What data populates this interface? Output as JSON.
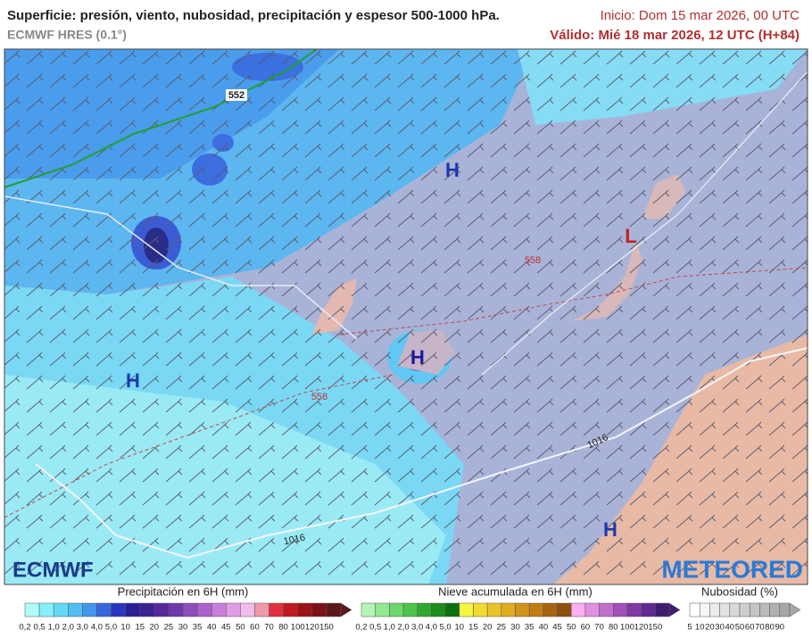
{
  "header": {
    "title": "Superficie: presión, viento, nubosidad, precipitación y espesor 500-1000 hPa.",
    "model": "ECMWF HRES (0.1°)",
    "init": "Inicio: Dom 15 mar 2026, 00 UTC",
    "valid": "Válido: Mié 18 mar 2026, 12 UTC (H+84)"
  },
  "map": {
    "pressure_centers": [
      "H",
      "H",
      "H",
      "H",
      "L"
    ],
    "thickness_labels": [
      "552",
      "558",
      "558"
    ],
    "isobar_labels": [
      "1016",
      "1016"
    ]
  },
  "logos": {
    "left": "ECMWF",
    "right": "METEORED"
  },
  "legends": [
    {
      "title": "Precipitación en 6H (mm)",
      "labels": [
        "0,2",
        "0,5",
        "1,0",
        "2,0",
        "3,0",
        "4,0",
        "5,0",
        "10",
        "15",
        "20",
        "25",
        "30",
        "35",
        "40",
        "45",
        "50",
        "60",
        "70",
        "80",
        "100",
        "120",
        "150"
      ],
      "colors": [
        "#aefcfc",
        "#86f0f8",
        "#62daf6",
        "#52bdf2",
        "#4296ea",
        "#3468dc",
        "#2a36c2",
        "#2a1e94",
        "#3a2290",
        "#55289c",
        "#7038ac",
        "#8e4cbc",
        "#ac62cc",
        "#c87ed8",
        "#e09ce4",
        "#f2bcec",
        "#ee9aa8",
        "#e03040",
        "#c01820",
        "#9c1018",
        "#7c1218",
        "#5c1818"
      ]
    },
    {
      "title": "Nieve acumulada en 6H (mm)",
      "labels": [
        "0,2",
        "0,5",
        "1,0",
        "2,0",
        "3,0",
        "4,0",
        "5,0",
        "10",
        "15",
        "20",
        "25",
        "30",
        "35",
        "40",
        "45",
        "50",
        "60",
        "70",
        "80",
        "100",
        "120",
        "150"
      ],
      "colors": [
        "#b4f4b4",
        "#90e890",
        "#6cd86c",
        "#4cc44c",
        "#30a830",
        "#1c8c1c",
        "#0c700c",
        "#f6f640",
        "#f0dc30",
        "#e8c428",
        "#e0ac20",
        "#d09418",
        "#c07c14",
        "#a86410",
        "#8c500c",
        "#f8b0f0",
        "#e090e0",
        "#c070cc",
        "#a050b8",
        "#8038a4",
        "#602890",
        "#401c70"
      ]
    },
    {
      "title": "Nubosidad (%)",
      "labels": [
        "5",
        "10",
        "20",
        "30",
        "40",
        "50",
        "60",
        "70",
        "80",
        "90"
      ],
      "colors": [
        "#ffffff",
        "#f6f6f6",
        "#ececec",
        "#e2e2e2",
        "#d8d8d8",
        "#cecece",
        "#c4c4c4",
        "#bababa",
        "#b0b0b0",
        "#a6a6a6"
      ]
    }
  ]
}
